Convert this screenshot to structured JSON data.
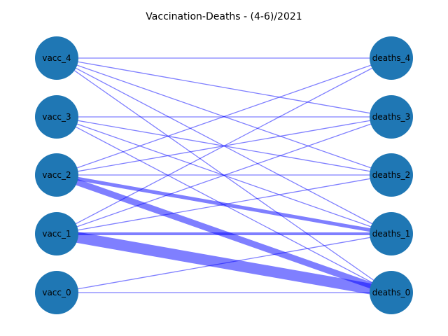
{
  "title": "Vaccination-Deaths - (4-6)/2021",
  "node_color": "#1f77b4",
  "edge_color": "#0000ff",
  "nodes": {
    "left": [
      "vacc_0",
      "vacc_1",
      "vacc_2",
      "vacc_3",
      "vacc_4"
    ],
    "right": [
      "deaths_0",
      "deaths_1",
      "deaths_2",
      "deaths_3",
      "deaths_4"
    ]
  },
  "edges": [
    {
      "source": "vacc_0",
      "target": "deaths_0",
      "weight": 1
    },
    {
      "source": "vacc_0",
      "target": "deaths_1",
      "weight": 1
    },
    {
      "source": "vacc_1",
      "target": "deaths_0",
      "weight": 12
    },
    {
      "source": "vacc_1",
      "target": "deaths_1",
      "weight": 3
    },
    {
      "source": "vacc_1",
      "target": "deaths_2",
      "weight": 1
    },
    {
      "source": "vacc_1",
      "target": "deaths_3",
      "weight": 1
    },
    {
      "source": "vacc_1",
      "target": "deaths_4",
      "weight": 1
    },
    {
      "source": "vacc_2",
      "target": "deaths_0",
      "weight": 7
    },
    {
      "source": "vacc_2",
      "target": "deaths_1",
      "weight": 4
    },
    {
      "source": "vacc_2",
      "target": "deaths_2",
      "weight": 1
    },
    {
      "source": "vacc_2",
      "target": "deaths_3",
      "weight": 1
    },
    {
      "source": "vacc_2",
      "target": "deaths_4",
      "weight": 1
    },
    {
      "source": "vacc_3",
      "target": "deaths_0",
      "weight": 1
    },
    {
      "source": "vacc_3",
      "target": "deaths_1",
      "weight": 1
    },
    {
      "source": "vacc_3",
      "target": "deaths_2",
      "weight": 1
    },
    {
      "source": "vacc_3",
      "target": "deaths_3",
      "weight": 1
    },
    {
      "source": "vacc_4",
      "target": "deaths_0",
      "weight": 1
    },
    {
      "source": "vacc_4",
      "target": "deaths_1",
      "weight": 1
    },
    {
      "source": "vacc_4",
      "target": "deaths_2",
      "weight": 1
    },
    {
      "source": "vacc_4",
      "target": "deaths_3",
      "weight": 1
    },
    {
      "source": "vacc_4",
      "target": "deaths_4",
      "weight": 1
    }
  ]
}
